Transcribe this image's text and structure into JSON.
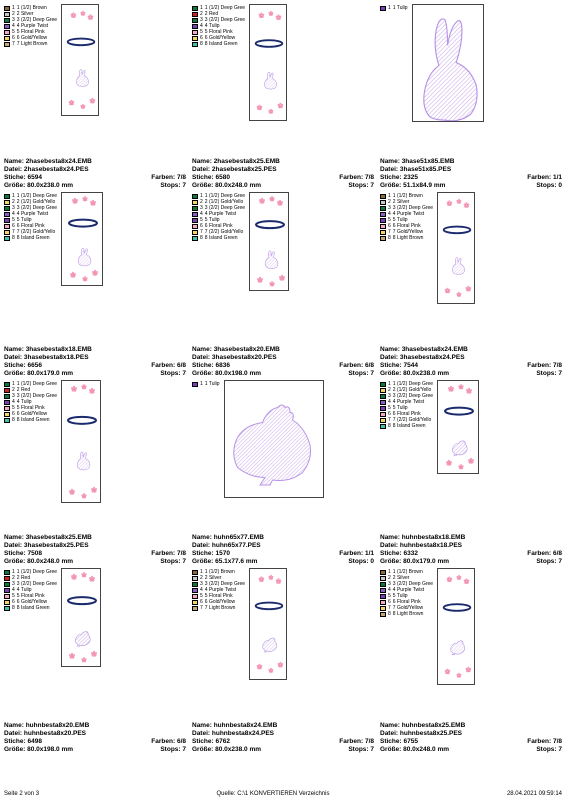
{
  "colors": {
    "deepGreen": "#0a7a3a",
    "red": "#d02020",
    "tulip": "#7a3eb8",
    "purpleTwist": "#8a5fc4",
    "floralPink": "#f7a8c4",
    "goldYellow": "#f2d760",
    "islandGreen": "#3ec4a8",
    "brown": "#8a6a3a",
    "silver": "#c8c8c8",
    "lightBrown": "#c4a878"
  },
  "footer": {
    "left": "Seite 2 von 3",
    "center": "Quelle: C:\\1 KONVERTIEREN Verzeichnis",
    "right": "28.04.2021 09:59:14"
  },
  "legends": {
    "L1": [
      [
        "brown",
        "1",
        "1 (1/2) Brown"
      ],
      [
        "silver",
        "2",
        "2 Silver"
      ],
      [
        "deepGreen",
        "3",
        "3 (2/2) Deep Gree"
      ],
      [
        "purpleTwist",
        "4",
        "4 Purple Twist"
      ],
      [
        "floralPink",
        "5",
        "5 Floral Pink"
      ],
      [
        "goldYellow",
        "6",
        "6 Gold/Yellow"
      ],
      [
        "lightBrown",
        "7",
        "7 Light Brown"
      ]
    ],
    "L2": [
      [
        "deepGreen",
        "1",
        "1 (1/2) Deep Gree"
      ],
      [
        "red",
        "2",
        "2 Red"
      ],
      [
        "deepGreen",
        "3",
        "3 (2/2) Deep Gree"
      ],
      [
        "tulip",
        "4",
        "4 Tulip"
      ],
      [
        "floralPink",
        "5",
        "5 Floral Pink"
      ],
      [
        "goldYellow",
        "6",
        "6 Gold/Yellow"
      ],
      [
        "islandGreen",
        "8",
        "8 Island Green"
      ]
    ],
    "L3": [
      [
        "tulip",
        "1",
        "1 Tulip"
      ]
    ],
    "L4": [
      [
        "deepGreen",
        "1",
        "1 (1/2) Deep Gree"
      ],
      [
        "goldYellow",
        "2",
        "2 (1/2) Gold/Yello"
      ],
      [
        "deepGreen",
        "3",
        "3 (2/2) Deep Gree"
      ],
      [
        "purpleTwist",
        "4",
        "4 Purple Twist"
      ],
      [
        "tulip",
        "5",
        "5 Tulip"
      ],
      [
        "floralPink",
        "6",
        "6 Floral Pink"
      ],
      [
        "goldYellow",
        "7",
        "7 (2/2) Gold/Yello"
      ],
      [
        "islandGreen",
        "8",
        "8 Island Green"
      ]
    ],
    "L5": [
      [
        "brown",
        "1",
        "1 (1/2) Brown"
      ],
      [
        "silver",
        "2",
        "2 Silver"
      ],
      [
        "deepGreen",
        "3",
        "3 (2/2) Deep Gree"
      ],
      [
        "purpleTwist",
        "4",
        "4 Purple Twist"
      ],
      [
        "tulip",
        "5",
        "5 Tulip"
      ],
      [
        "floralPink",
        "6",
        "6 Floral Pink"
      ],
      [
        "goldYellow",
        "7",
        "7 Gold/Yellow"
      ],
      [
        "lightBrown",
        "8",
        "8 Light Brown"
      ]
    ]
  },
  "cells": [
    {
      "legend": "L1",
      "art": "bunnyA",
      "tw": 38,
      "th": 112,
      "name": "2hasebesta8x24.EMB",
      "datei": "2hasebesta8x24.PES",
      "stiche": "6594",
      "farben": "7/8",
      "groesse": "80.0x238.0 mm",
      "stops": "7"
    },
    {
      "legend": "L2",
      "art": "bunnyA",
      "tw": 38,
      "th": 117,
      "name": "2hasebesta8x25.EMB",
      "datei": "2hasebesta8x25.PES",
      "stiche": "6580",
      "farben": "7/8",
      "groesse": "80.0x248.0 mm",
      "stops": "7"
    },
    {
      "legend": "L3",
      "art": "bigBunny",
      "tw": 72,
      "th": 118,
      "name": "3hase51x85.EMB",
      "datei": "3hase51x85.PES",
      "stiche": "2325",
      "farben": "1/1",
      "groesse": "51.1x84.9 mm",
      "stops": "0"
    },
    {
      "legend": "L4",
      "art": "bunnyB",
      "tw": 42,
      "th": 94,
      "name": "3hasebesta8x18.EMB",
      "datei": "3hasebesta8x18.PES",
      "stiche": "6656",
      "farben": "6/8",
      "groesse": "80.0x179.0 mm",
      "stops": "7"
    },
    {
      "legend": "L4",
      "art": "bunnyB",
      "tw": 40,
      "th": 99,
      "name": "3hasebesta8x20.EMB",
      "datei": "3hasebesta8x20.PES",
      "stiche": "6836",
      "farben": "6/8",
      "groesse": "80.0x198.0 mm",
      "stops": "7"
    },
    {
      "legend": "L5",
      "art": "bunnyB",
      "tw": 38,
      "th": 112,
      "name": "3hasebesta8x24.EMB",
      "datei": "3hasebesta8x24.PES",
      "stiche": "7544",
      "farben": "7/8",
      "groesse": "80.0x238.0 mm",
      "stops": "7"
    },
    {
      "legend": "L2",
      "art": "bunnyB",
      "tw": 40,
      "th": 123,
      "name": "3hasebesta8x25.EMB",
      "datei": "3hasebesta8x25.PES",
      "stiche": "7508",
      "farben": "7/8",
      "groesse": "80.0x248.0 mm",
      "stops": "7"
    },
    {
      "legend": "L3",
      "art": "bigHen",
      "tw": 100,
      "th": 118,
      "name": "huhn65x77.EMB",
      "datei": "huhn65x77.PES",
      "stiche": "1570",
      "farben": "1/1",
      "groesse": "65.1x77.6 mm",
      "stops": "0"
    },
    {
      "legend": "L4",
      "art": "henA",
      "tw": 42,
      "th": 94,
      "name": "huhnbesta8x18.EMB",
      "datei": "huhnbesta8x18.PES",
      "stiche": "6332",
      "farben": "6/8",
      "groesse": "80.0x179.0 mm",
      "stops": "7"
    },
    {
      "legend": "L2",
      "art": "henA",
      "tw": 40,
      "th": 99,
      "name": "huhnbesta8x20.EMB",
      "datei": "huhnbesta8x20.PES",
      "stiche": "6498",
      "farben": "6/8",
      "groesse": "80.0x198.0 mm",
      "stops": "7"
    },
    {
      "legend": "L1",
      "art": "henA",
      "tw": 38,
      "th": 112,
      "name": "huhnbesta8x24.EMB",
      "datei": "huhnbesta8x24.PES",
      "stiche": "6762",
      "farben": "7/8",
      "groesse": "80.0x238.0 mm",
      "stops": "7"
    },
    {
      "legend": "L5",
      "art": "henA",
      "tw": 38,
      "th": 117,
      "name": "huhnbesta8x25.EMB",
      "datei": "huhnbesta8x25.PES",
      "stiche": "6755",
      "farben": "7/8",
      "groesse": "80.0x248.0 mm",
      "stops": "7"
    }
  ]
}
